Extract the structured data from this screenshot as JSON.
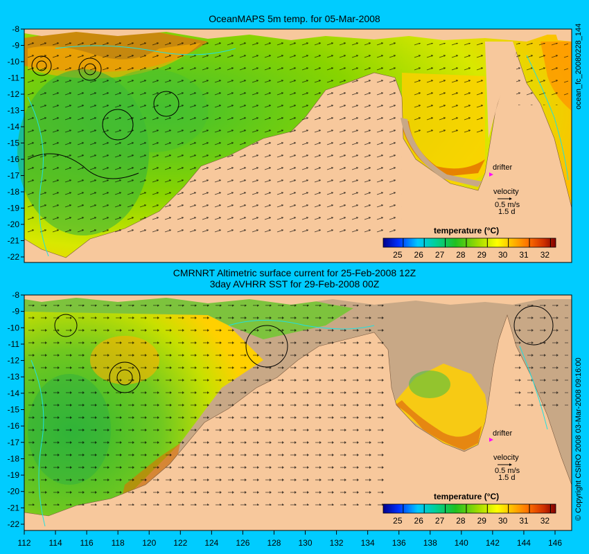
{
  "panels": [
    {
      "title_lines": [
        "OceanMAPS 5m temp. for 05-Mar-2008"
      ],
      "side_label": "ocean_fc_20080228_144",
      "legend_title": "temperature (°C)",
      "legend_ticks": [
        "25",
        "26",
        "27",
        "28",
        "29",
        "30",
        "31",
        "32"
      ],
      "drifter_label": "drifter",
      "velocity_label": "velocity",
      "velocity_scale": "0.5 m/s",
      "velocity_days": "1.5 d",
      "y_ticks": [
        "-8",
        "-9",
        "-10",
        "-11",
        "-12",
        "-13",
        "-14",
        "-15",
        "-16",
        "-17",
        "-18",
        "-19",
        "-20",
        "-21",
        "-22"
      ]
    },
    {
      "title_lines": [
        "CMRNRT Altimetric surface current for 25-Feb-2008 12Z",
        "3day AVHRR SST for 29-Feb-2008 00Z"
      ],
      "side_label": "© Copyright CSIRO 2008   03-Mar-2008 09:16:00",
      "legend_title": "temperature (°C)",
      "legend_ticks": [
        "25",
        "26",
        "27",
        "28",
        "29",
        "30",
        "31",
        "32"
      ],
      "drifter_label": "drifter",
      "velocity_label": "velocity",
      "velocity_scale": "0.5 m/s",
      "velocity_days": "1.5 d",
      "y_ticks": [
        "-8",
        "-9",
        "-10",
        "-11",
        "-12",
        "-13",
        "-14",
        "-15",
        "-16",
        "-17",
        "-18",
        "-19",
        "-20",
        "-21",
        "-22"
      ],
      "x_ticks": [
        "112",
        "114",
        "116",
        "118",
        "120",
        "122",
        "124",
        "126",
        "128",
        "130",
        "132",
        "134",
        "136",
        "138",
        "140",
        "142",
        "144",
        "146"
      ]
    }
  ],
  "colors": {
    "background": "#00ccff",
    "land": "#f7c89c",
    "no_data": "#c8a886",
    "colorbar": [
      "#00008b",
      "#0040ff",
      "#00c0ff",
      "#00d08a",
      "#10c020",
      "#70d000",
      "#c8e600",
      "#ffff00",
      "#ffc000",
      "#ff8000",
      "#e05000",
      "#c02000",
      "#8b0000"
    ],
    "drifter": "#ff00ff"
  }
}
